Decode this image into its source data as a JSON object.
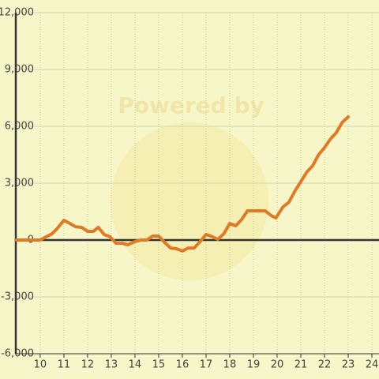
{
  "chart_data": {
    "type": "line",
    "watermark": "Powered by",
    "x": [
      9,
      10,
      10.25,
      10.5,
      10.7,
      11,
      11.25,
      11.5,
      11.75,
      12,
      12.25,
      12.45,
      12.7,
      12.95,
      13.2,
      13.45,
      13.7,
      14,
      14.25,
      14.5,
      14.75,
      15,
      15.25,
      15.5,
      15.75,
      16,
      16.25,
      16.5,
      16.75,
      17,
      17.2,
      17.5,
      17.75,
      18,
      18.25,
      18.5,
      18.75,
      19,
      19.25,
      19.5,
      19.75,
      19.95,
      20.25,
      20.5,
      20.75,
      21,
      21.25,
      21.5,
      21.75,
      22,
      22.25,
      22.5,
      22.75,
      23
    ],
    "series": [
      {
        "color": "#e07b25",
        "values": [
          0,
          0,
          170,
          330,
          580,
          1040,
          875,
          700,
          670,
          460,
          460,
          670,
          290,
          170,
          -170,
          -170,
          -250,
          -80,
          0,
          0,
          210,
          210,
          -120,
          -420,
          -460,
          -580,
          -420,
          -420,
          -80,
          290,
          210,
          40,
          330,
          875,
          750,
          1080,
          1540,
          1540,
          1540,
          1540,
          1290,
          1170,
          1750,
          2000,
          2580,
          3080,
          3580,
          3920,
          4500,
          4875,
          5330,
          5670,
          6210,
          6500
        ]
      }
    ],
    "xlim": [
      8.97,
      24.3
    ],
    "ylim": [
      -6000,
      12000
    ],
    "xticks": [
      10,
      11,
      12,
      13,
      14,
      15,
      16,
      17,
      18,
      19,
      20,
      21,
      22,
      23,
      24
    ],
    "yticks": [
      {
        "value": -6000,
        "label": "-6,000"
      },
      {
        "value": -3000,
        "label": "-3,000"
      },
      0,
      {
        "value": 3000,
        "label": "3,000"
      },
      {
        "value": 6000,
        "label": "6,000"
      },
      {
        "value": 9000,
        "label": "9,000"
      },
      {
        "value": 12000,
        "label": "12,000"
      }
    ],
    "grid": true
  }
}
